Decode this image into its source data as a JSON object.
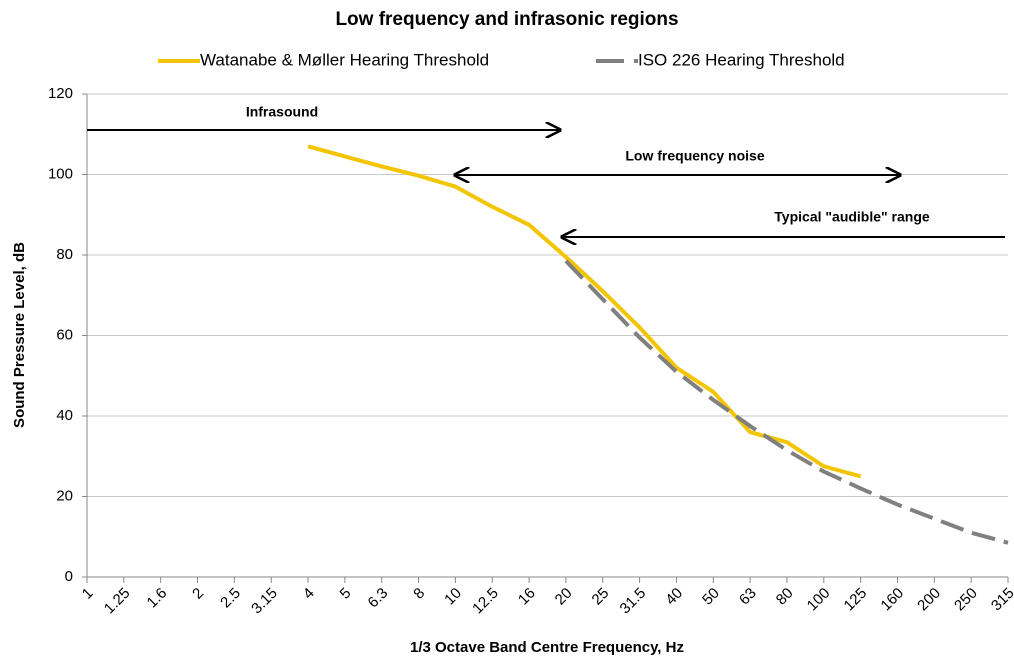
{
  "chart_data": {
    "type": "line",
    "title": "Low frequency and infrasonic regions",
    "x_label": "1/3 Octave Band Centre Frequency, Hz",
    "y_label": "Sound Pressure Level, dB",
    "categories": [
      "1",
      "1.25",
      "1.6",
      "2",
      "2.5",
      "3.15",
      "4",
      "5",
      "6.3",
      "8",
      "10",
      "12.5",
      "16",
      "20",
      "25",
      "31.5",
      "40",
      "50",
      "63",
      "80",
      "100",
      "125",
      "160",
      "200",
      "250",
      "315"
    ],
    "series": [
      {
        "name": "Watanabe & Møller Hearing Threshold",
        "color": "#f2c500",
        "dashed": false,
        "values": [
          null,
          null,
          null,
          null,
          null,
          null,
          107,
          104.5,
          102,
          99.7,
          97,
          92,
          87.5,
          79.5,
          71,
          62,
          52,
          46,
          36,
          33.5,
          27.5,
          25,
          null,
          null,
          null,
          null
        ]
      },
      {
        "name": "ISO 226 Hearing Threshold",
        "color": "#808080",
        "dashed": true,
        "values": [
          null,
          null,
          null,
          null,
          null,
          null,
          null,
          null,
          null,
          null,
          null,
          null,
          null,
          78.5,
          69,
          59.5,
          51,
          44,
          37.5,
          31.5,
          26.2,
          22,
          18,
          14.5,
          11,
          8.5
        ]
      }
    ],
    "annotations": [
      "Infrasound",
      "Low frequency noise",
      "Typical \"audible\" range"
    ],
    "ylim": [
      0,
      120
    ],
    "yticks": [
      0,
      20,
      40,
      60,
      80,
      100,
      120
    ],
    "grid": true,
    "legend": "top"
  }
}
